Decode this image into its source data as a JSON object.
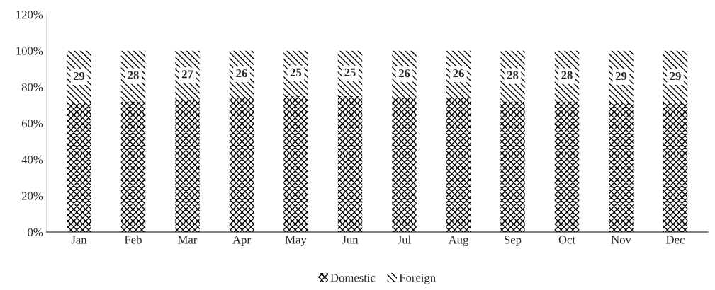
{
  "chart_data": {
    "type": "bar",
    "stacked": true,
    "categories": [
      "Jan",
      "Feb",
      "Mar",
      "Apr",
      "May",
      "Jun",
      "Jul",
      "Aug",
      "Sep",
      "Oct",
      "Nov",
      "Dec"
    ],
    "series": [
      {
        "name": "Domestic",
        "color": "#000000",
        "values": [
          71,
          72,
          73,
          74,
          75,
          75,
          74,
          74,
          72,
          72,
          71,
          71
        ]
      },
      {
        "name": "Foreign",
        "color": "#000000",
        "values": [
          29,
          28,
          27,
          26,
          25,
          25,
          26,
          26,
          28,
          28,
          29,
          29
        ],
        "value_labels": [
          "29",
          "28",
          "27",
          "26",
          "25",
          "25",
          "26",
          "26",
          "28",
          "28",
          "29",
          "29"
        ]
      }
    ],
    "ylim": [
      0,
      120
    ],
    "yticks": [
      {
        "value": 0,
        "label": "0%"
      },
      {
        "value": 20,
        "label": "20%"
      },
      {
        "value": 40,
        "label": "40%"
      },
      {
        "value": 60,
        "label": "60%"
      },
      {
        "value": 80,
        "label": "80%"
      },
      {
        "value": 100,
        "label": "100%"
      },
      {
        "value": 120,
        "label": "120%"
      }
    ],
    "grid": false,
    "legend": "bottom"
  }
}
